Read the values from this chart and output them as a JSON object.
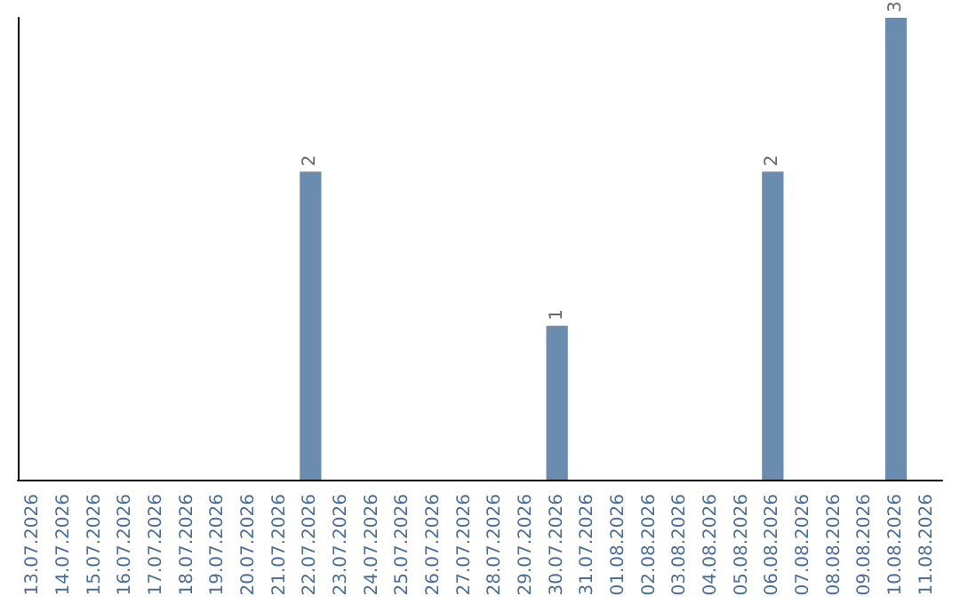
{
  "chart_data": {
    "type": "bar",
    "categories": [
      "13.07.2026",
      "14.07.2026",
      "15.07.2026",
      "16.07.2026",
      "17.07.2026",
      "18.07.2026",
      "19.07.2026",
      "20.07.2026",
      "21.07.2026",
      "22.07.2026",
      "23.07.2026",
      "24.07.2026",
      "25.07.2026",
      "26.07.2026",
      "27.07.2026",
      "28.07.2026",
      "29.07.2026",
      "30.07.2026",
      "31.07.2026",
      "01.08.2026",
      "02.08.2026",
      "03.08.2026",
      "04.08.2026",
      "05.08.2026",
      "06.08.2026",
      "07.08.2026",
      "08.08.2026",
      "09.08.2026",
      "10.08.2026",
      "11.08.2026"
    ],
    "values": [
      0,
      0,
      0,
      0,
      0,
      0,
      0,
      0,
      0,
      2,
      0,
      0,
      0,
      0,
      0,
      0,
      0,
      1,
      0,
      0,
      0,
      0,
      0,
      0,
      2,
      0,
      0,
      0,
      3,
      0
    ],
    "value_labels": [
      null,
      null,
      null,
      null,
      null,
      null,
      null,
      null,
      null,
      "2",
      null,
      null,
      null,
      null,
      null,
      null,
      null,
      "1",
      null,
      null,
      null,
      null,
      null,
      null,
      "2",
      null,
      null,
      null,
      "3",
      null
    ],
    "color": "#6a8caf",
    "grid": false,
    "tick_labels": "x"
  }
}
